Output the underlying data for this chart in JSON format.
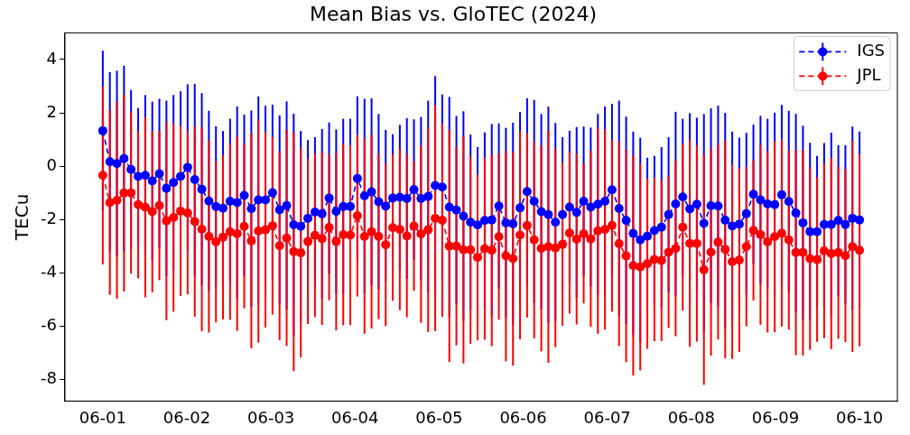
{
  "chart_data": {
    "type": "line",
    "title": "Mean Bias vs. GloTEC (2024)",
    "ylabel": "TECu",
    "x": [
      "2024-06-01T00:00",
      "2024-06-01T02:01",
      "2024-06-01T04:02",
      "2024-06-01T06:03",
      "2024-06-01T08:04",
      "2024-06-01T10:06",
      "2024-06-01T12:07",
      "2024-06-01T14:08",
      "2024-06-01T16:09",
      "2024-06-01T18:10",
      "2024-06-01T20:11",
      "2024-06-01T22:12",
      "2024-06-02T00:13",
      "2024-06-02T02:15",
      "2024-06-02T04:16",
      "2024-06-02T06:17",
      "2024-06-02T08:18",
      "2024-06-02T10:19",
      "2024-06-02T12:20",
      "2024-06-02T14:21",
      "2024-06-02T16:22",
      "2024-06-02T18:24",
      "2024-06-02T20:25",
      "2024-06-02T22:26",
      "2024-06-03T00:27",
      "2024-06-03T02:28",
      "2024-06-03T04:29",
      "2024-06-03T06:30",
      "2024-06-03T08:31",
      "2024-06-03T10:33",
      "2024-06-03T12:34",
      "2024-06-03T14:35",
      "2024-06-03T16:36",
      "2024-06-03T18:37",
      "2024-06-03T20:38",
      "2024-06-03T22:39",
      "2024-06-04T00:40",
      "2024-06-04T02:42",
      "2024-06-04T04:43",
      "2024-06-04T06:44",
      "2024-06-04T08:45",
      "2024-06-04T10:46",
      "2024-06-04T12:47",
      "2024-06-04T14:48",
      "2024-06-04T16:49",
      "2024-06-04T18:50",
      "2024-06-04T20:52",
      "2024-06-04T22:53",
      "2024-06-05T00:54",
      "2024-06-05T02:55",
      "2024-06-05T04:56",
      "2024-06-05T06:57",
      "2024-06-05T08:58",
      "2024-06-05T10:59",
      "2024-06-05T13:01",
      "2024-06-05T15:02",
      "2024-06-05T17:03",
      "2024-06-05T19:04",
      "2024-06-05T21:05",
      "2024-06-05T23:06",
      "2024-06-06T01:07",
      "2024-06-06T03:08",
      "2024-06-06T05:10",
      "2024-06-06T07:11",
      "2024-06-06T09:12",
      "2024-06-06T11:13",
      "2024-06-06T13:14",
      "2024-06-06T15:15",
      "2024-06-06T17:16",
      "2024-06-06T19:17",
      "2024-06-06T21:19",
      "2024-06-06T23:20",
      "2024-06-07T01:21",
      "2024-06-07T03:22",
      "2024-06-07T05:23",
      "2024-06-07T07:24",
      "2024-06-07T09:25",
      "2024-06-07T11:26",
      "2024-06-07T13:27",
      "2024-06-07T15:29",
      "2024-06-07T17:30",
      "2024-06-07T19:31",
      "2024-06-07T21:32",
      "2024-06-07T23:33",
      "2024-06-08T01:34",
      "2024-06-08T03:35",
      "2024-06-08T05:36",
      "2024-06-08T07:38",
      "2024-06-08T09:39",
      "2024-06-08T11:40",
      "2024-06-08T13:41",
      "2024-06-08T15:42",
      "2024-06-08T17:43",
      "2024-06-08T19:44",
      "2024-06-08T21:45",
      "2024-06-08T23:47",
      "2024-06-09T01:48",
      "2024-06-09T03:49",
      "2024-06-09T05:50",
      "2024-06-09T07:51",
      "2024-06-09T09:52",
      "2024-06-09T11:53",
      "2024-06-09T13:54",
      "2024-06-09T15:56",
      "2024-06-09T17:57",
      "2024-06-09T19:58",
      "2024-06-09T21:59",
      "2024-06-10T00:00"
    ],
    "series": [
      {
        "name": "IGS",
        "color": "#0000ff",
        "values": [
          1.33,
          0.17,
          0.1,
          0.29,
          -0.12,
          -0.38,
          -0.34,
          -0.55,
          -0.28,
          -0.83,
          -0.61,
          -0.38,
          -0.04,
          -0.5,
          -0.86,
          -1.3,
          -1.51,
          -1.57,
          -1.31,
          -1.36,
          -1.09,
          -1.59,
          -1.26,
          -1.26,
          -0.99,
          -1.63,
          -1.47,
          -2.19,
          -2.25,
          -1.95,
          -1.72,
          -1.78,
          -1.19,
          -1.69,
          -1.51,
          -1.51,
          -0.46,
          -1.11,
          -0.96,
          -1.33,
          -1.5,
          -1.19,
          -1.16,
          -1.21,
          -0.87,
          -1.21,
          -1.13,
          -0.72,
          -0.78,
          -1.53,
          -1.64,
          -1.87,
          -2.1,
          -2.2,
          -2.03,
          -2.01,
          -1.49,
          -2.12,
          -2.16,
          -1.56,
          -0.95,
          -1.31,
          -1.7,
          -1.81,
          -2.1,
          -1.81,
          -1.53,
          -1.73,
          -1.31,
          -1.53,
          -1.42,
          -1.31,
          -0.88,
          -1.58,
          -2.03,
          -2.52,
          -2.76,
          -2.62,
          -2.41,
          -2.28,
          -1.81,
          -1.41,
          -1.15,
          -1.6,
          -1.42,
          -2.14,
          -1.48,
          -1.49,
          -2.02,
          -2.24,
          -2.17,
          -1.78,
          -1.05,
          -1.26,
          -1.41,
          -1.44,
          -1.07,
          -1.32,
          -1.75,
          -2.12,
          -2.45,
          -2.45,
          -2.18,
          -2.18,
          -2.03,
          -2.18,
          -1.95,
          -2.01
        ],
        "errors": [
          3.0,
          3.36,
          3.48,
          3.48,
          2.98,
          2.56,
          3.01,
          2.97,
          2.81,
          3.29,
          3.28,
          3.19,
          3.11,
          3.59,
          3.6,
          3.38,
          3.01,
          2.89,
          3.09,
          3.6,
          3.03,
          3.68,
          3.88,
          3.53,
          3.3,
          3.54,
          3.9,
          4.16,
          3.57,
          2.93,
          2.81,
          3.18,
          2.83,
          3.07,
          3.29,
          3.29,
          3.08,
          3.64,
          3.51,
          3.29,
          2.86,
          2.39,
          2.71,
          3.01,
          2.63,
          3.06,
          3.59,
          4.1,
          3.47,
          4.13,
          3.53,
          3.93,
          3.29,
          2.92,
          3.3,
          3.59,
          3.1,
          3.56,
          3.79,
          3.59,
          3.5,
          3.8,
          3.66,
          4.05,
          3.72,
          2.9,
          2.86,
          3.2,
          2.8,
          2.98,
          3.38,
          3.55,
          3.22,
          4.04,
          3.89,
          3.82,
          3.83,
          2.94,
          2.8,
          3.0,
          2.9,
          3.45,
          2.93,
          3.59,
          3.24,
          4.1,
          3.65,
          3.76,
          4.02,
          3.54,
          3.24,
          3.03,
          2.61,
          3.15,
          3.19,
          3.45,
          3.37,
          3.4,
          3.71,
          3.64,
          3.33,
          2.84,
          3.05,
          3.44,
          2.82,
          2.97,
          3.44,
          3.31
        ]
      },
      {
        "name": "JPL",
        "color": "#ff0000",
        "values": [
          -0.34,
          -1.36,
          -1.28,
          -1.0,
          -1.0,
          -1.44,
          -1.53,
          -1.7,
          -1.47,
          -2.05,
          -1.92,
          -1.68,
          -1.75,
          -2.07,
          -2.36,
          -2.63,
          -2.83,
          -2.66,
          -2.45,
          -2.53,
          -2.25,
          -2.8,
          -2.43,
          -2.38,
          -2.23,
          -2.98,
          -2.69,
          -3.2,
          -3.25,
          -2.82,
          -2.59,
          -2.71,
          -2.29,
          -2.82,
          -2.56,
          -2.58,
          -1.85,
          -2.63,
          -2.45,
          -2.63,
          -2.94,
          -2.3,
          -2.37,
          -2.61,
          -2.24,
          -2.54,
          -2.38,
          -1.95,
          -2.02,
          -2.99,
          -2.99,
          -3.13,
          -3.13,
          -3.42,
          -3.09,
          -3.15,
          -2.64,
          -3.36,
          -3.46,
          -2.58,
          -2.22,
          -2.76,
          -3.08,
          -3.01,
          -3.06,
          -2.93,
          -2.5,
          -2.73,
          -2.53,
          -2.72,
          -2.42,
          -2.37,
          -2.22,
          -2.9,
          -3.36,
          -3.72,
          -3.77,
          -3.65,
          -3.49,
          -3.53,
          -3.22,
          -3.08,
          -2.28,
          -2.89,
          -2.89,
          -3.88,
          -3.22,
          -2.84,
          -3.11,
          -3.58,
          -3.52,
          -3.01,
          -2.4,
          -2.56,
          -2.83,
          -2.64,
          -2.51,
          -2.76,
          -3.23,
          -3.23,
          -3.46,
          -3.5,
          -3.17,
          -3.27,
          -3.23,
          -3.35,
          -3.01,
          -3.15
        ],
        "errors": [
          3.34,
          3.46,
          3.68,
          3.69,
          3.02,
          2.76,
          3.38,
          3.02,
          2.8,
          3.72,
          3.53,
          3.18,
          3.05,
          3.57,
          3.82,
          3.6,
          3.02,
          3.08,
          3.3,
          3.64,
          3.07,
          4.02,
          4.18,
          3.66,
          3.33,
          3.54,
          4.05,
          4.48,
          3.92,
          3.09,
          3.06,
          3.24,
          2.73,
          3.33,
          3.4,
          3.37,
          3.03,
          3.65,
          3.63,
          3.1,
          3.05,
          2.74,
          3.02,
          3.05,
          2.43,
          3.33,
          3.83,
          4.23,
          3.62,
          4.35,
          3.72,
          4.26,
          3.52,
          3.11,
          3.41,
          3.59,
          3.11,
          3.95,
          4.01,
          3.9,
          3.45,
          3.69,
          3.86,
          4.36,
          3.72,
          3.05,
          3.02,
          3.2,
          2.61,
          3.3,
          3.86,
          3.75,
          3.23,
          3.84,
          3.98,
          4.12,
          3.88,
          3.19,
          3.06,
          3.02,
          2.84,
          3.29,
          3.13,
          3.88,
          3.68,
          4.31,
          3.88,
          3.65,
          4.08,
          3.64,
          3.44,
          2.99,
          2.63,
          3.38,
          3.4,
          3.58,
          3.5,
          3.36,
          3.85,
          3.86,
          3.42,
          3.08,
          3.27,
          3.58,
          3.24,
          3.24,
          3.95,
          3.6
        ]
      }
    ],
    "xlim": [
      "2024-05-31T13:12",
      "2024-06-10T10:48"
    ],
    "xticks": [
      {
        "value": "2024-06-01",
        "label": "06-01"
      },
      {
        "value": "2024-06-02",
        "label": "06-02"
      },
      {
        "value": "2024-06-03",
        "label": "06-03"
      },
      {
        "value": "2024-06-04",
        "label": "06-04"
      },
      {
        "value": "2024-06-05",
        "label": "06-05"
      },
      {
        "value": "2024-06-06",
        "label": "06-06"
      },
      {
        "value": "2024-06-07",
        "label": "06-07"
      },
      {
        "value": "2024-06-08",
        "label": "06-08"
      },
      {
        "value": "2024-06-09",
        "label": "06-09"
      },
      {
        "value": "2024-06-10",
        "label": "06-10"
      }
    ],
    "ylim": [
      -8.8,
      5.0
    ],
    "yticks": [
      -8,
      -6,
      -4,
      -2,
      0,
      2,
      4
    ],
    "legend": "top right",
    "marker": "circle",
    "line_style": "dashed"
  }
}
